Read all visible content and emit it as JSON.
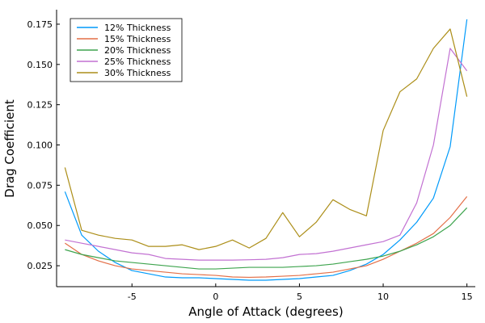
{
  "chart_data": {
    "type": "line",
    "title": "",
    "xlabel": "Angle of Attack (degrees)",
    "ylabel": "Drag Coefficient",
    "xlim": [
      -9.5,
      15.5
    ],
    "ylim": [
      0.012,
      0.184
    ],
    "xticks": [
      -5,
      0,
      5,
      10,
      15
    ],
    "yticks": [
      0.025,
      0.05,
      0.075,
      0.1,
      0.125,
      0.15,
      0.175
    ],
    "ytick_labels": [
      "0.025",
      "0.050",
      "0.075",
      "0.100",
      "0.125",
      "0.150",
      "0.175"
    ],
    "grid": false,
    "legend_position": "top-left",
    "x": [
      -9,
      -8,
      -7,
      -6,
      -5,
      -4,
      -3,
      -2,
      -1,
      0,
      1,
      2,
      3,
      4,
      5,
      6,
      7,
      8,
      9,
      10,
      11,
      12,
      13,
      14,
      15
    ],
    "series": [
      {
        "name": "12% Thickness",
        "color": "#009AFA",
        "values": [
          0.071,
          0.044,
          0.034,
          0.027,
          0.022,
          0.02,
          0.018,
          0.0175,
          0.0175,
          0.017,
          0.0165,
          0.016,
          0.016,
          0.0165,
          0.017,
          0.018,
          0.019,
          0.022,
          0.026,
          0.032,
          0.041,
          0.052,
          0.067,
          0.099,
          0.178
        ]
      },
      {
        "name": "15% Thickness",
        "color": "#E36F47",
        "values": [
          0.039,
          0.032,
          0.028,
          0.025,
          0.023,
          0.022,
          0.021,
          0.02,
          0.0195,
          0.019,
          0.018,
          0.0178,
          0.018,
          0.0185,
          0.019,
          0.02,
          0.021,
          0.023,
          0.025,
          0.029,
          0.034,
          0.039,
          0.045,
          0.055,
          0.068
        ]
      },
      {
        "name": "20% Thickness",
        "color": "#3EA44E",
        "values": [
          0.035,
          0.032,
          0.03,
          0.028,
          0.027,
          0.026,
          0.025,
          0.024,
          0.023,
          0.023,
          0.0235,
          0.024,
          0.024,
          0.024,
          0.0245,
          0.025,
          0.026,
          0.0275,
          0.029,
          0.031,
          0.034,
          0.038,
          0.043,
          0.05,
          0.061
        ]
      },
      {
        "name": "25% Thickness",
        "color": "#C271D2",
        "values": [
          0.041,
          0.039,
          0.037,
          0.035,
          0.033,
          0.032,
          0.0295,
          0.029,
          0.0285,
          0.0285,
          0.0285,
          0.0287,
          0.029,
          0.03,
          0.032,
          0.0325,
          0.034,
          0.036,
          0.038,
          0.04,
          0.044,
          0.064,
          0.1,
          0.16,
          0.146
        ]
      },
      {
        "name": "30% Thickness",
        "color": "#AC8E18",
        "values": [
          0.086,
          0.047,
          0.044,
          0.042,
          0.041,
          0.037,
          0.037,
          0.038,
          0.035,
          0.037,
          0.041,
          0.036,
          0.042,
          0.058,
          0.043,
          0.052,
          0.066,
          0.06,
          0.056,
          0.109,
          0.133,
          0.141,
          0.16,
          0.172,
          0.13
        ]
      }
    ]
  }
}
